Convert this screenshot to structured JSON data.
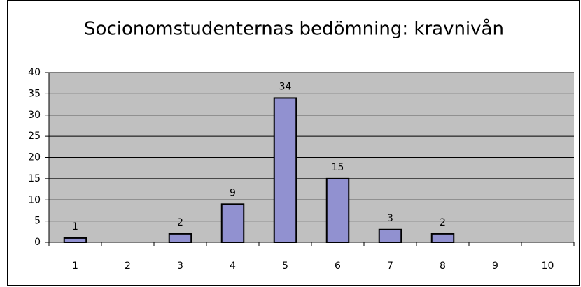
{
  "chart_data": {
    "type": "bar",
    "title": "Socionomstudenternas bedömning: kravnivån",
    "categories": [
      "1",
      "2",
      "3",
      "4",
      "5",
      "6",
      "7",
      "8",
      "9",
      "10"
    ],
    "values": [
      1,
      null,
      2,
      9,
      34,
      15,
      3,
      2,
      null,
      null
    ],
    "color": "#9191d0",
    "ylim": [
      0,
      40
    ],
    "yticks": [
      0,
      5,
      10,
      15,
      20,
      25,
      30,
      35,
      40
    ],
    "grid": true
  }
}
